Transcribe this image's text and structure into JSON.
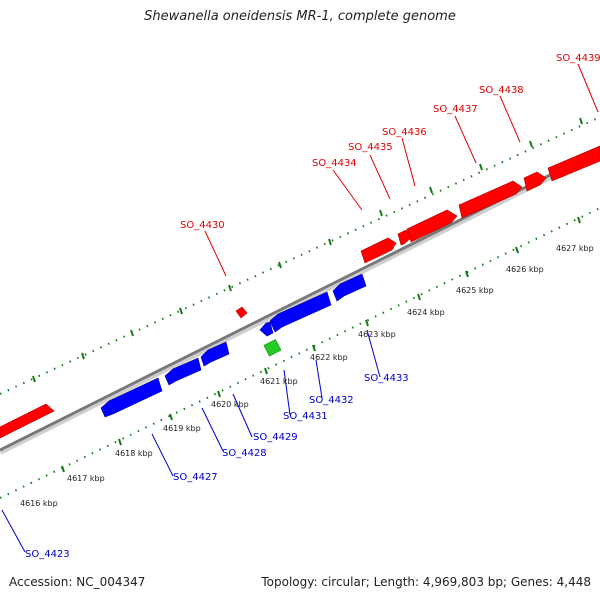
{
  "title": "Shewanella oneidensis MR-1, complete genome",
  "accession": "Accession: NC_004347",
  "summary": "Topology: circular; Length: 4,969,803 bp; Genes: 4,448",
  "colors": {
    "forward": "#ff0000",
    "reverse": "#0000ff",
    "other": "#22cc22",
    "backbone": "#7a7a7a",
    "tick": "#1a7a1a",
    "label_forward": "#e00000",
    "label_reverse": "#0000cc"
  },
  "ticks": [
    "4616 kbp",
    "4617 kbp",
    "4618 kbp",
    "4619 kbp",
    "4620 kbp",
    "4621 kbp",
    "4622 kbp",
    "4623 kbp",
    "4624 kbp",
    "4625 kbp",
    "4626 kbp",
    "4627 kbp"
  ],
  "forward_labels": [
    "SO_4430",
    "SO_4434",
    "SO_4435",
    "SO_4436",
    "SO_4437",
    "SO_4438",
    "SO_4439"
  ],
  "reverse_labels": [
    "SO_4423",
    "SO_4427",
    "SO_4428",
    "SO_4429",
    "SO_4431",
    "SO_4432",
    "SO_4433"
  ]
}
